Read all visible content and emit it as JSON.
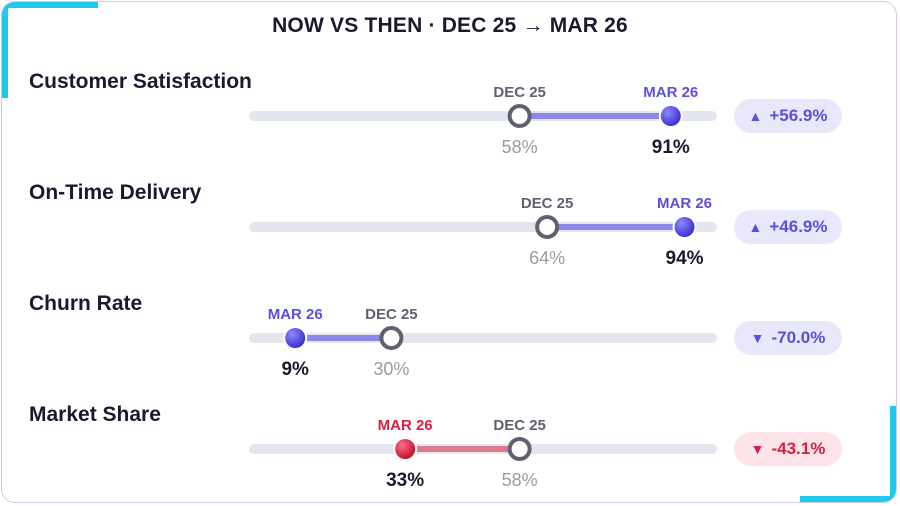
{
  "title": "NOW VS THEN · DEC 25 → MAR 26",
  "colors": {
    "then": "#5f6070",
    "now_good": "#5b4fe0",
    "now_bad": "#d81f45",
    "track": "#e3e6ee",
    "link_good": "#8f86ea",
    "link_bad": "#e07a8f",
    "accent": "#1ec8f0"
  },
  "chart_data": {
    "type": "dumbbell",
    "then_label": "DEC 25",
    "now_label": "MAR 26",
    "xlim": [
      0,
      100
    ],
    "unit": "%",
    "rows": [
      {
        "label": "Customer Satisfaction",
        "then": 58,
        "now": 91,
        "then_text": "58%",
        "now_text": "91%",
        "change": "+56.9%",
        "arrow": "▲",
        "sentiment": "good"
      },
      {
        "label": "On-Time Delivery",
        "then": 64,
        "now": 94,
        "then_text": "64%",
        "now_text": "94%",
        "change": "+46.9%",
        "arrow": "▲",
        "sentiment": "good"
      },
      {
        "label": "Churn Rate",
        "then": 30,
        "now": 9,
        "then_text": "30%",
        "now_text": "9%",
        "change": "-70.0%",
        "arrow": "▼",
        "sentiment": "good"
      },
      {
        "label": "Market Share",
        "then": 58,
        "now": 33,
        "then_text": "58%",
        "now_text": "33%",
        "change": "-43.1%",
        "arrow": "▼",
        "sentiment": "bad"
      }
    ]
  }
}
